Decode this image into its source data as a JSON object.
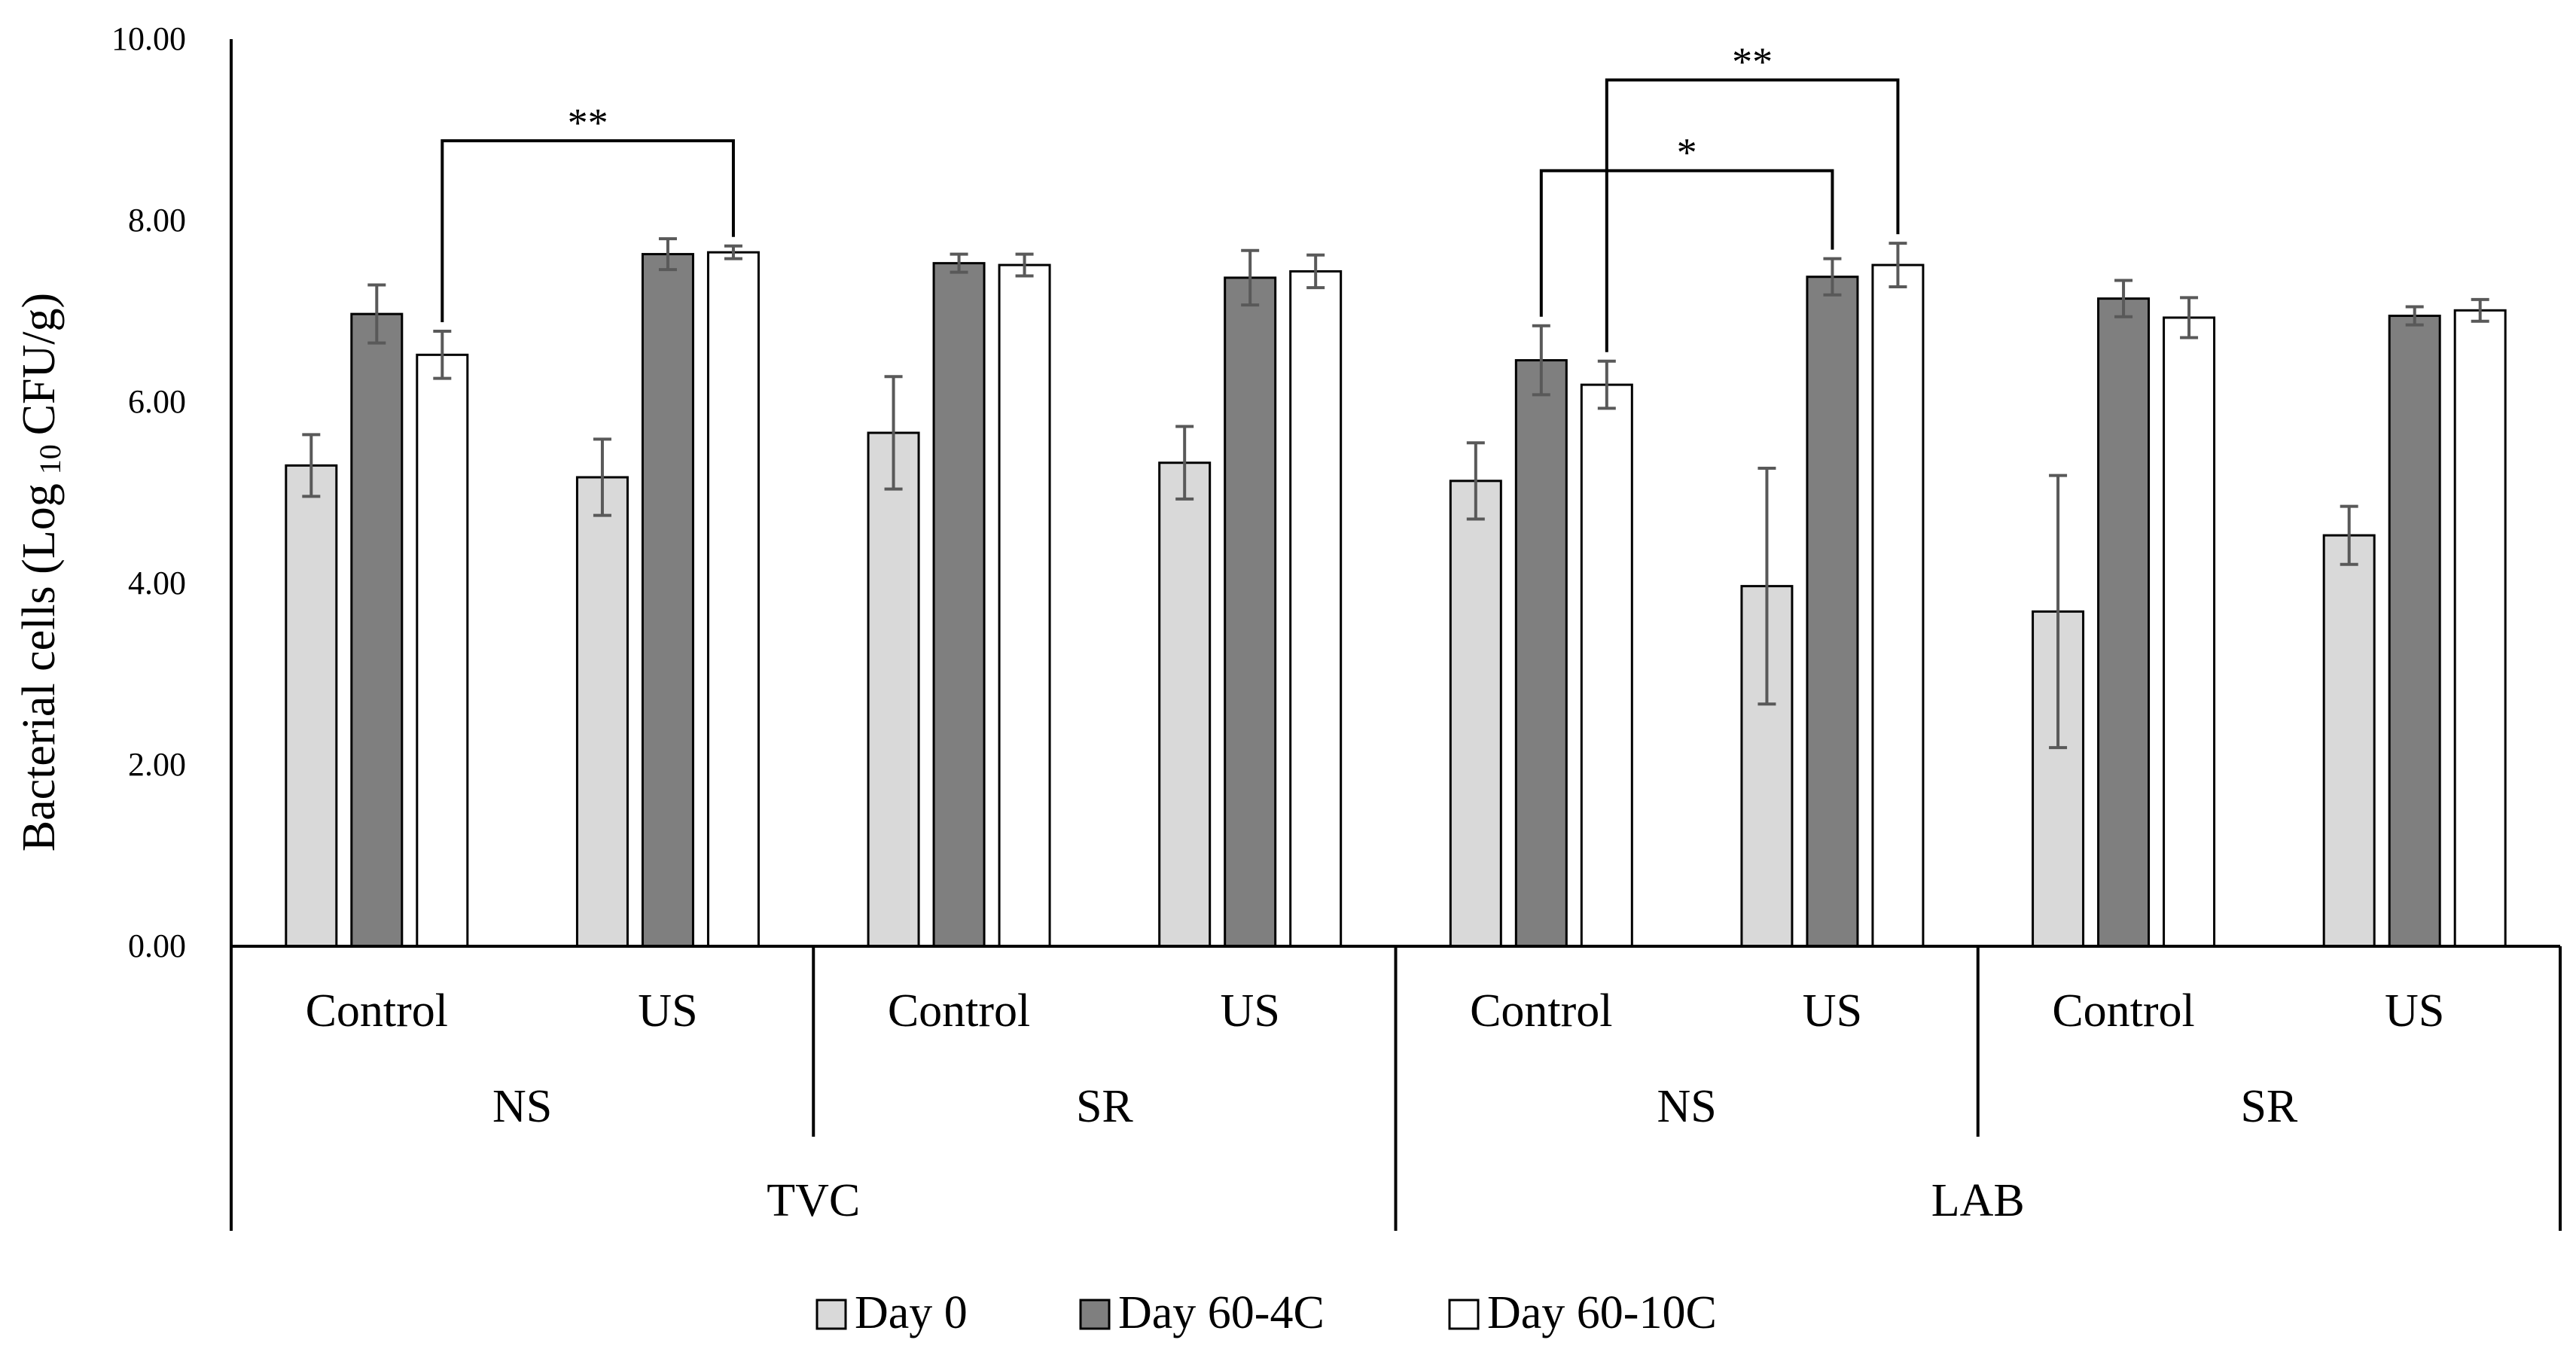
{
  "chart_data": {
    "type": "bar",
    "ylabel_parts": [
      "Bacterial cells (Log",
      "10",
      "CFU/g)"
    ],
    "ylim": [
      0,
      10
    ],
    "yticks": [
      "0.00",
      "2.00",
      "4.00",
      "6.00",
      "8.00",
      "10.00"
    ],
    "categories": [
      "Control",
      "US",
      "Control",
      "US",
      "Control",
      "US",
      "Control",
      "US"
    ],
    "groups": [
      "NS",
      "SR",
      "NS",
      "SR"
    ],
    "metrics": [
      "TVC",
      "LAB"
    ],
    "series": [
      {
        "name": "Day 0",
        "color": "#d9d9d9",
        "values": [
          5.3,
          5.17,
          5.66,
          5.33,
          5.13,
          3.97,
          3.69,
          4.53
        ],
        "errors": [
          0.34,
          0.42,
          0.62,
          0.4,
          0.42,
          1.3,
          1.5,
          0.32
        ]
      },
      {
        "name": "Day 60-4C",
        "color": "#7f7f7f",
        "values": [
          6.97,
          7.63,
          7.53,
          7.37,
          6.46,
          7.38,
          7.14,
          6.95
        ],
        "errors": [
          0.32,
          0.17,
          0.1,
          0.3,
          0.38,
          0.2,
          0.2,
          0.1
        ]
      },
      {
        "name": "Day 60-10C",
        "color": "#ffffff",
        "values": [
          6.52,
          7.65,
          7.51,
          7.44,
          6.19,
          7.51,
          6.93,
          7.01
        ],
        "errors": [
          0.26,
          0.07,
          0.12,
          0.18,
          0.26,
          0.24,
          0.22,
          0.12
        ]
      }
    ],
    "significance": [
      {
        "label": "**",
        "from": [
          0,
          2
        ],
        "to": [
          1,
          2
        ],
        "y": 8.88
      },
      {
        "label": "*",
        "from": [
          4,
          1
        ],
        "to": [
          5,
          1
        ],
        "y": 8.55
      },
      {
        "label": "**",
        "from": [
          4,
          2
        ],
        "to": [
          5,
          2
        ],
        "y": 9.55
      }
    ],
    "legend_position": "bottom-center",
    "grid": false
  }
}
